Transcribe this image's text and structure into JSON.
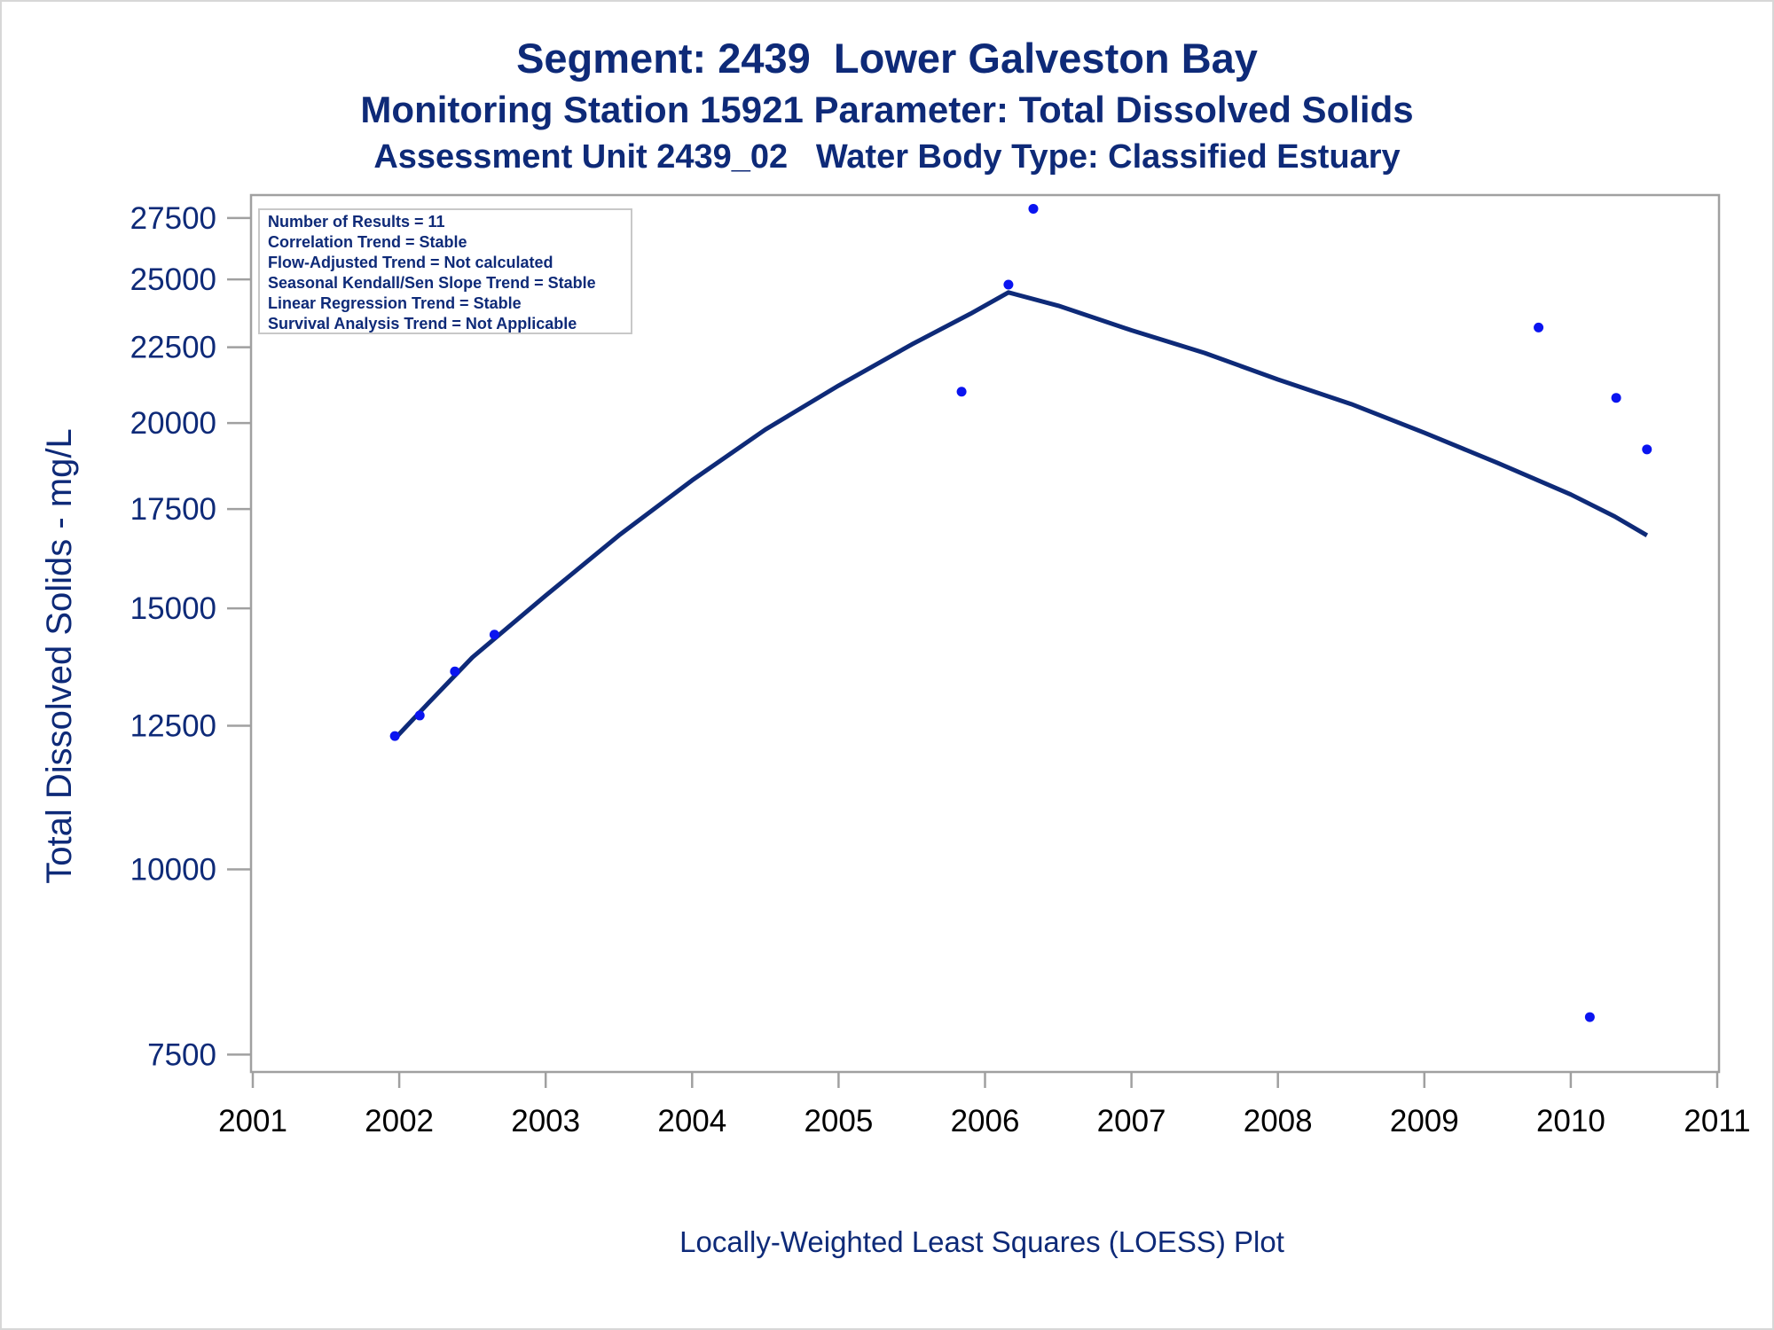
{
  "titles": {
    "line1": "Segment: 2439  Lower Galveston Bay",
    "line2": "Monitoring Station 15921 Parameter: Total Dissolved Solids",
    "line3": "Assessment Unit 2439_02   Water Body Type: Classified Estuary"
  },
  "inset": {
    "lines": [
      "Number of Results = 11",
      "Correlation Trend = Stable",
      "Flow-Adjusted Trend = Not calculated",
      "Seasonal Kendall/Sen Slope Trend = Stable",
      "Linear Regression Trend = Stable",
      "Survival Analysis Trend = Not Applicable"
    ]
  },
  "footnote": "Locally-Weighted Least Squares (LOESS) Plot",
  "colors": {
    "text": "#0e2a78",
    "points": "#0a14f0",
    "loess_line": "#0e2a78",
    "frame": "#a0a0a0"
  },
  "chart_data": {
    "type": "scatter",
    "ylabel": "Total Dissolved Solids - mg/L",
    "xlabel": "",
    "y_scale": "log",
    "xlim": [
      2001,
      2011
    ],
    "ylim": [
      7300,
      28500
    ],
    "x_ticks": [
      2001,
      2002,
      2003,
      2004,
      2005,
      2006,
      2007,
      2008,
      2009,
      2010,
      2011
    ],
    "y_ticks": [
      7500,
      10000,
      12500,
      15000,
      17500,
      20000,
      22500,
      25000,
      27500
    ],
    "grid": false,
    "legend": "none",
    "series": [
      {
        "kind": "points",
        "x": [
          2001.97,
          2002.14,
          2002.38,
          2002.65,
          2005.84,
          2006.16,
          2006.33,
          2009.78,
          2010.13,
          2010.31,
          2010.52
        ],
        "y": [
          12300,
          12700,
          13600,
          14400,
          21000,
          24800,
          27900,
          23200,
          7950,
          20800,
          19200
        ]
      },
      {
        "kind": "line",
        "x": [
          2001.97,
          2002.2,
          2002.5,
          2003.0,
          2003.5,
          2004.0,
          2004.5,
          2005.0,
          2005.5,
          2005.9,
          2006.16,
          2006.5,
          2007.0,
          2007.5,
          2008.0,
          2008.5,
          2009.0,
          2009.5,
          2010.0,
          2010.3,
          2010.52
        ],
        "y": [
          12250,
          12950,
          13900,
          15300,
          16800,
          18300,
          19800,
          21200,
          22600,
          23700,
          24500,
          24000,
          23100,
          22300,
          21400,
          20600,
          19700,
          18800,
          17900,
          17300,
          16800
        ]
      }
    ]
  }
}
